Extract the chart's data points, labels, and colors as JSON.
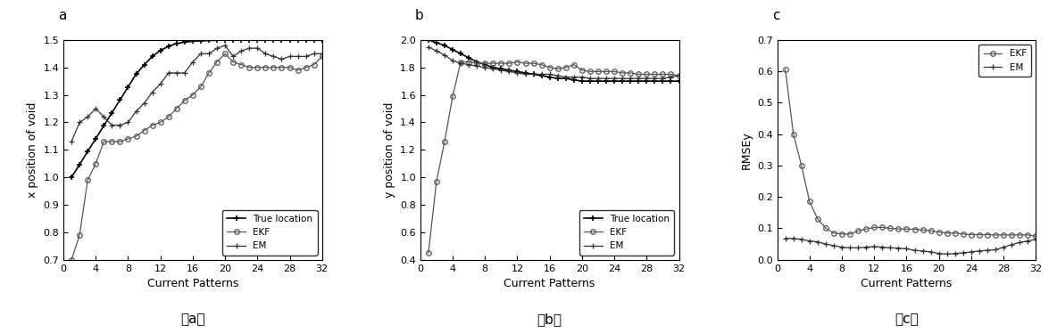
{
  "x_ticks": [
    0,
    4,
    8,
    12,
    16,
    20,
    24,
    28,
    32
  ],
  "plot_a": {
    "title": "a",
    "xlabel": "Current Patterns",
    "ylabel": "x position of void",
    "ylim": [
      0.7,
      1.5
    ],
    "yticks": [
      0.7,
      0.8,
      0.9,
      1.0,
      1.1,
      1.2,
      1.3,
      1.4,
      1.5
    ],
    "true_x": [
      1,
      2,
      3,
      4,
      5,
      6,
      7,
      8,
      9,
      10,
      11,
      12,
      13,
      14,
      15,
      16,
      17,
      18,
      19,
      20,
      21,
      22,
      23,
      24,
      25,
      26,
      27,
      28,
      29,
      30,
      31,
      32
    ],
    "true_y": [
      1.0,
      1.047,
      1.094,
      1.141,
      1.188,
      1.235,
      1.282,
      1.329,
      1.376,
      1.41,
      1.44,
      1.462,
      1.477,
      1.487,
      1.492,
      1.495,
      1.497,
      1.498,
      1.499,
      1.499,
      1.499,
      1.499,
      1.499,
      1.499,
      1.499,
      1.499,
      1.499,
      1.499,
      1.499,
      1.499,
      1.499,
      1.499
    ],
    "ekf_x": [
      1,
      2,
      3,
      4,
      5,
      6,
      7,
      8,
      9,
      10,
      11,
      12,
      13,
      14,
      15,
      16,
      17,
      18,
      19,
      20,
      21,
      22,
      23,
      24,
      25,
      26,
      27,
      28,
      29,
      30,
      31,
      32
    ],
    "ekf_y": [
      0.7,
      0.79,
      0.99,
      1.05,
      1.13,
      1.13,
      1.13,
      1.14,
      1.15,
      1.17,
      1.19,
      1.2,
      1.22,
      1.25,
      1.28,
      1.3,
      1.33,
      1.38,
      1.42,
      1.45,
      1.42,
      1.41,
      1.4,
      1.4,
      1.4,
      1.4,
      1.4,
      1.4,
      1.39,
      1.4,
      1.41,
      1.44
    ],
    "em_x": [
      1,
      2,
      3,
      4,
      5,
      6,
      7,
      8,
      9,
      10,
      11,
      12,
      13,
      14,
      15,
      16,
      17,
      18,
      19,
      20,
      21,
      22,
      23,
      24,
      25,
      26,
      27,
      28,
      29,
      30,
      31,
      32
    ],
    "em_y": [
      1.13,
      1.2,
      1.22,
      1.25,
      1.22,
      1.19,
      1.19,
      1.2,
      1.24,
      1.27,
      1.31,
      1.34,
      1.38,
      1.38,
      1.38,
      1.42,
      1.45,
      1.45,
      1.47,
      1.48,
      1.44,
      1.46,
      1.47,
      1.47,
      1.45,
      1.44,
      1.43,
      1.44,
      1.44,
      1.44,
      1.45,
      1.45
    ]
  },
  "plot_b": {
    "title": "b",
    "xlabel": "Current Patterns",
    "ylabel": "y position of void",
    "ylim": [
      0.4,
      2.0
    ],
    "yticks": [
      0.4,
      0.6,
      0.8,
      1.0,
      1.2,
      1.4,
      1.6,
      1.8,
      2.0
    ],
    "true_x": [
      1,
      2,
      3,
      4,
      5,
      6,
      7,
      8,
      9,
      10,
      11,
      12,
      13,
      14,
      15,
      16,
      17,
      18,
      19,
      20,
      21,
      22,
      23,
      24,
      25,
      26,
      27,
      28,
      29,
      30,
      31,
      32
    ],
    "true_y": [
      2.0,
      1.98,
      1.96,
      1.93,
      1.9,
      1.87,
      1.84,
      1.82,
      1.8,
      1.79,
      1.78,
      1.77,
      1.76,
      1.75,
      1.74,
      1.73,
      1.72,
      1.72,
      1.71,
      1.7,
      1.7,
      1.7,
      1.7,
      1.7,
      1.7,
      1.7,
      1.7,
      1.7,
      1.7,
      1.7,
      1.7,
      1.7
    ],
    "ekf_x": [
      1,
      2,
      3,
      4,
      5,
      6,
      7,
      8,
      9,
      10,
      11,
      12,
      13,
      14,
      15,
      16,
      17,
      18,
      19,
      20,
      21,
      22,
      23,
      24,
      25,
      26,
      27,
      28,
      29,
      30,
      31,
      32
    ],
    "ekf_y": [
      0.45,
      0.97,
      1.26,
      1.59,
      1.84,
      1.84,
      1.83,
      1.83,
      1.83,
      1.83,
      1.83,
      1.84,
      1.83,
      1.83,
      1.82,
      1.8,
      1.79,
      1.8,
      1.82,
      1.78,
      1.77,
      1.77,
      1.77,
      1.77,
      1.76,
      1.76,
      1.75,
      1.75,
      1.75,
      1.75,
      1.75,
      1.74
    ],
    "em_x": [
      1,
      2,
      3,
      4,
      5,
      6,
      7,
      8,
      9,
      10,
      11,
      12,
      13,
      14,
      15,
      16,
      17,
      18,
      19,
      20,
      21,
      22,
      23,
      24,
      25,
      26,
      27,
      28,
      29,
      30,
      31,
      32
    ],
    "em_y": [
      1.95,
      1.92,
      1.89,
      1.85,
      1.83,
      1.82,
      1.81,
      1.8,
      1.79,
      1.78,
      1.77,
      1.76,
      1.75,
      1.75,
      1.75,
      1.75,
      1.74,
      1.73,
      1.73,
      1.73,
      1.72,
      1.72,
      1.72,
      1.72,
      1.72,
      1.72,
      1.72,
      1.72,
      1.72,
      1.72,
      1.73,
      1.74
    ]
  },
  "plot_c": {
    "title": "c",
    "xlabel": "Current Patterns",
    "ylabel": "RMSEy",
    "ylim": [
      0.0,
      0.7
    ],
    "yticks": [
      0.0,
      0.1,
      0.2,
      0.3,
      0.4,
      0.5,
      0.6,
      0.7
    ],
    "ekf_x": [
      1,
      2,
      3,
      4,
      5,
      6,
      7,
      8,
      9,
      10,
      11,
      12,
      13,
      14,
      15,
      16,
      17,
      18,
      19,
      20,
      21,
      22,
      23,
      24,
      25,
      26,
      27,
      28,
      29,
      30,
      31,
      32
    ],
    "ekf_y": [
      0.605,
      0.4,
      0.3,
      0.185,
      0.13,
      0.1,
      0.085,
      0.082,
      0.082,
      0.092,
      0.098,
      0.103,
      0.103,
      0.1,
      0.098,
      0.098,
      0.097,
      0.095,
      0.092,
      0.088,
      0.085,
      0.085,
      0.082,
      0.08,
      0.08,
      0.08,
      0.079,
      0.079,
      0.079,
      0.079,
      0.079,
      0.075
    ],
    "em_x": [
      1,
      2,
      3,
      4,
      5,
      6,
      7,
      8,
      9,
      10,
      11,
      12,
      13,
      14,
      15,
      16,
      17,
      18,
      19,
      20,
      21,
      22,
      23,
      24,
      25,
      26,
      27,
      28,
      29,
      30,
      31,
      32
    ],
    "em_y": [
      0.068,
      0.068,
      0.065,
      0.06,
      0.057,
      0.05,
      0.045,
      0.04,
      0.038,
      0.038,
      0.04,
      0.042,
      0.04,
      0.038,
      0.037,
      0.035,
      0.03,
      0.028,
      0.025,
      0.02,
      0.018,
      0.02,
      0.022,
      0.025,
      0.028,
      0.03,
      0.032,
      0.04,
      0.048,
      0.055,
      0.06,
      0.065
    ]
  }
}
